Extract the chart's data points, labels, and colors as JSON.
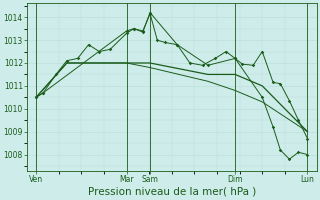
{
  "bg_color": "#ceecea",
  "grid_color_major": "#b8ddd8",
  "grid_color_minor": "#cce8e4",
  "line_color": "#1a5c1a",
  "xlabel": "Pression niveau de la mer( hPa )",
  "xlabel_fontsize": 7.5,
  "ytick_fontsize": 5.5,
  "xtick_fontsize": 5.5,
  "ylim": [
    1007.3,
    1014.6
  ],
  "yticks": [
    1008,
    1009,
    1010,
    1011,
    1012,
    1013,
    1014
  ],
  "xlim": [
    0,
    160
  ],
  "xtick_positions": [
    5,
    55,
    68,
    115,
    155
  ],
  "xtick_labels": [
    "Ven",
    "Mar",
    "Sam",
    "Dim",
    "Lun"
  ],
  "vlines": [
    5,
    55,
    68,
    115,
    155
  ],
  "series1_marked": {
    "x": [
      5,
      9,
      16,
      22,
      28,
      34,
      40,
      46,
      55,
      59,
      64,
      68,
      72,
      76,
      83,
      90,
      97,
      104,
      110,
      115,
      119,
      125,
      130,
      136,
      140,
      145,
      150,
      155
    ],
    "y": [
      1010.5,
      1010.7,
      1011.5,
      1012.1,
      1012.2,
      1012.8,
      1012.5,
      1012.6,
      1013.3,
      1013.5,
      1013.4,
      1014.15,
      1013.0,
      1012.9,
      1012.8,
      1012.0,
      1011.9,
      1012.2,
      1012.5,
      1012.2,
      1011.95,
      1011.9,
      1012.5,
      1011.15,
      1011.1,
      1010.35,
      1009.5,
      1008.7
    ]
  },
  "series2_marked": {
    "x": [
      5,
      9,
      55,
      59,
      64,
      68,
      83,
      100,
      115,
      130,
      136,
      140,
      145,
      150,
      155
    ],
    "y": [
      1010.5,
      1010.7,
      1013.4,
      1013.5,
      1013.35,
      1014.2,
      1012.8,
      1011.9,
      1012.2,
      1010.5,
      1009.2,
      1008.2,
      1007.8,
      1008.1,
      1008.0
    ]
  },
  "series3_flat": {
    "x": [
      5,
      22,
      40,
      55,
      68,
      100,
      115,
      130,
      155
    ],
    "y": [
      1010.5,
      1012.0,
      1012.0,
      1012.0,
      1012.0,
      1011.5,
      1011.5,
      1011.0,
      1009.0
    ]
  },
  "series4_diagonal": {
    "x": [
      5,
      22,
      40,
      55,
      68,
      100,
      115,
      130,
      155
    ],
    "y": [
      1010.5,
      1012.0,
      1012.0,
      1012.0,
      1011.8,
      1011.2,
      1010.8,
      1010.3,
      1009.0
    ]
  }
}
